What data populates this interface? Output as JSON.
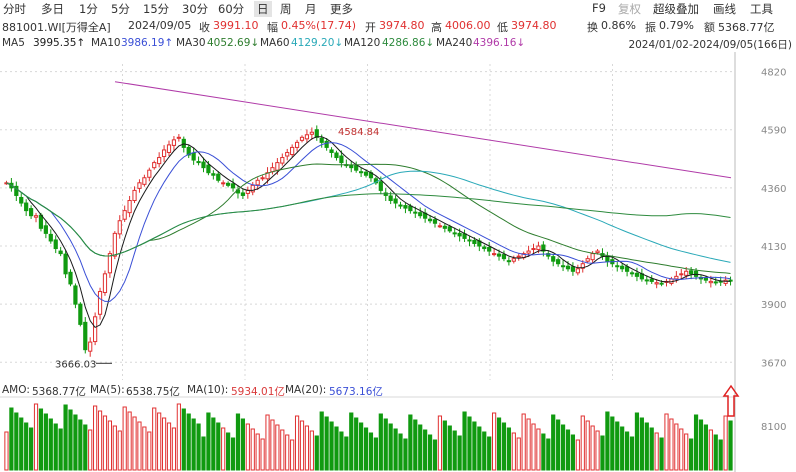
{
  "toolbar": {
    "periods": [
      "分时",
      "多日",
      "1分",
      "5分",
      "15分",
      "30分",
      "60分",
      "日",
      "周",
      "月",
      "更多"
    ],
    "active": "日",
    "right": [
      "F9",
      "复权",
      "超级叠加",
      "画线",
      "工具"
    ]
  },
  "info": {
    "code": "881001.WI[万得全A]",
    "date": "2024/09/05",
    "close_label": "收",
    "close": "3991.10",
    "change_label": "幅",
    "change": "0.45%(17.74)",
    "open_label": "开",
    "open": "3974.80",
    "high_label": "高",
    "high": "4006.00",
    "low_label": "低",
    "low": "3974.80",
    "turnover_label": "换",
    "turnover": "0.86%",
    "amplitude_label": "振",
    "amplitude": "0.79%",
    "amount_label": "额",
    "amount": "5368.77亿"
  },
  "ma": [
    {
      "label": "MA5",
      "value": "3995.35↑",
      "color": "#1a1a1a"
    },
    {
      "label": "MA10",
      "value": "3986.19↑",
      "color": "#3a4fd6"
    },
    {
      "label": "MA30",
      "value": "4052.69↓",
      "color": "#2e7d2e"
    },
    {
      "label": "MA60",
      "value": "4129.20↓",
      "color": "#2aa9b8"
    },
    {
      "label": "MA120",
      "value": "4286.86↓",
      "color": "#2e8b3e"
    },
    {
      "label": "MA240",
      "value": "4396.16↓",
      "color": "#b03aa8"
    }
  ],
  "date_range": "2024/01/02-2024/09/05(166日)",
  "amo": {
    "label": "AMO:",
    "value": "5368.77亿",
    "ma5_label": "MA(5):",
    "ma5": "6538.75亿",
    "ma5_color": "#333333",
    "ma10_label": "MA(10):",
    "ma10": "5934.01亿",
    "ma10_color": "#d93a3a",
    "ma20_label": "MA(20):",
    "ma20": "5673.16亿",
    "ma20_color": "#3a4fd6"
  },
  "colors": {
    "up": "#e03030",
    "down": "#109a10",
    "grid": "#d8d8d8",
    "axis_text": "#888888"
  },
  "chart_data": {
    "type": "candlestick",
    "y_ticks": [
      "4820",
      "4590",
      "4360",
      "4130",
      "3900",
      "3670"
    ],
    "ylim": [
      3600,
      4850
    ],
    "amount_y_tick": "8100",
    "annotations": {
      "high_label": "4584.84",
      "low_label": "3666.03"
    },
    "x_count": 166,
    "close_approx": [
      4380,
      4360,
      4330,
      4300,
      4270,
      4250,
      4250,
      4200,
      4180,
      4150,
      4120,
      4100,
      4020,
      3980,
      3900,
      3820,
      3720,
      3750,
      3850,
      3950,
      4020,
      4100,
      4180,
      4230,
      4270,
      4310,
      4350,
      4380,
      4400,
      4430,
      4460,
      4480,
      4510,
      4530,
      4550,
      4560,
      4520,
      4490,
      4470,
      4460,
      4440,
      4420,
      4410,
      4390,
      4380,
      4370,
      4360,
      4340,
      4330,
      4350,
      4370,
      4390,
      4400,
      4420,
      4440,
      4460,
      4480,
      4500,
      4520,
      4540,
      4560,
      4570,
      4580,
      4560,
      4540,
      4520,
      4500,
      4480,
      4460,
      4450,
      4440,
      4430,
      4420,
      4410,
      4400,
      4380,
      4350,
      4330,
      4310,
      4300,
      4290,
      4280,
      4270,
      4260,
      4250,
      4240,
      4230,
      4220,
      4210,
      4200,
      4190,
      4180,
      4170,
      4160,
      4150,
      4140,
      4130,
      4120,
      4110,
      4100,
      4090,
      4080,
      4070,
      4080,
      4090,
      4100,
      4110,
      4120,
      4130,
      4110,
      4090,
      4070,
      4060,
      4050,
      4040,
      4030,
      4040,
      4060,
      4080,
      4100,
      4110,
      4090,
      4070,
      4060,
      4050,
      4040,
      4030,
      4020,
      4010,
      4000,
      3995,
      3990,
      3985,
      3980,
      3990,
      4000,
      4010,
      4020,
      4030,
      4020,
      4010,
      4000,
      3995,
      3990,
      3985,
      3990,
      3995,
      3991
    ]
  }
}
